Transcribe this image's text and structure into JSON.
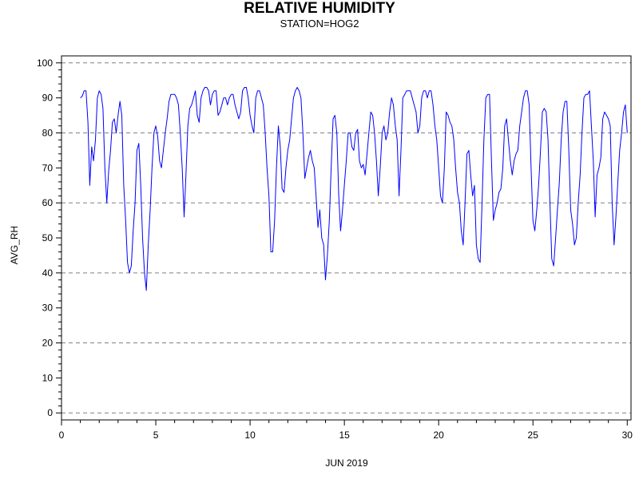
{
  "chart_data": {
    "type": "line",
    "title": "RELATIVE HUMIDITY",
    "subtitle": "STATION=HOG2",
    "xlabel": "JUN 2019",
    "ylabel": "AVG_RH",
    "xlim": [
      0,
      30.2
    ],
    "ylim": [
      -2,
      102
    ],
    "xticks": [
      0,
      5,
      10,
      15,
      20,
      25,
      30
    ],
    "yticks": [
      0,
      10,
      20,
      30,
      40,
      50,
      60,
      70,
      80,
      90,
      100
    ],
    "grid": {
      "horizontal_dashed_at": [
        0,
        20,
        40,
        60,
        80,
        100
      ]
    },
    "line_color": "#0000ff",
    "series": [
      {
        "x": [
          1.0,
          1.1,
          1.2,
          1.3,
          1.4,
          1.5,
          1.6,
          1.7,
          1.8,
          1.9,
          2.0,
          2.1,
          2.2,
          2.3,
          2.4,
          2.5,
          2.6,
          2.7,
          2.8,
          2.9,
          3.0,
          3.1,
          3.2,
          3.3,
          3.4,
          3.5,
          3.6,
          3.7,
          3.8,
          3.9,
          4.0,
          4.1,
          4.2,
          4.3,
          4.4,
          4.5,
          4.6,
          4.7,
          4.8,
          4.9,
          5.0,
          5.1,
          5.2,
          5.3,
          5.4,
          5.5,
          5.6,
          5.7,
          5.8,
          5.9,
          6.0,
          6.1,
          6.2,
          6.3,
          6.4,
          6.5,
          6.6,
          6.7,
          6.8,
          6.9,
          7.0,
          7.1,
          7.2,
          7.3,
          7.4,
          7.5,
          7.6,
          7.7,
          7.8,
          7.9,
          8.0,
          8.1,
          8.2,
          8.3,
          8.4,
          8.5,
          8.6,
          8.7,
          8.8,
          8.9,
          9.0,
          9.1,
          9.2,
          9.3,
          9.4,
          9.5,
          9.6,
          9.7,
          9.8,
          9.9,
          10.0,
          10.1,
          10.2,
          10.3,
          10.4,
          10.5,
          10.6,
          10.7,
          10.8,
          10.9,
          11.0,
          11.1,
          11.2,
          11.3,
          11.4,
          11.5,
          11.6,
          11.7,
          11.8,
          11.9,
          12.0,
          12.1,
          12.2,
          12.3,
          12.4,
          12.5,
          12.6,
          12.7,
          12.8,
          12.9,
          13.0,
          13.1,
          13.2,
          13.3,
          13.4,
          13.5,
          13.6,
          13.7,
          13.8,
          13.9,
          14.0,
          14.1,
          14.2,
          14.3,
          14.4,
          14.5,
          14.6,
          14.7,
          14.8,
          14.9,
          15.0,
          15.1,
          15.2,
          15.3,
          15.4,
          15.5,
          15.6,
          15.7,
          15.8,
          15.9,
          16.0,
          16.1,
          16.2,
          16.3,
          16.4,
          16.5,
          16.6,
          16.7,
          16.8,
          16.9,
          17.0,
          17.1,
          17.2,
          17.3,
          17.4,
          17.5,
          17.6,
          17.7,
          17.8,
          17.9,
          18.0,
          18.1,
          18.2,
          18.3,
          18.4,
          18.5,
          18.6,
          18.7,
          18.8,
          18.9,
          19.0,
          19.1,
          19.2,
          19.3,
          19.4,
          19.5,
          19.6,
          19.7,
          19.8,
          19.9,
          20.0,
          20.1,
          20.2,
          20.3,
          20.4,
          20.5,
          20.6,
          20.7,
          20.8,
          20.9,
          21.0,
          21.1,
          21.2,
          21.3,
          21.4,
          21.5,
          21.6,
          21.7,
          21.8,
          21.9,
          22.0,
          22.1,
          22.2,
          22.3,
          22.4,
          22.5,
          22.6,
          22.7,
          22.8,
          22.9,
          23.0,
          23.1,
          23.2,
          23.3,
          23.4,
          23.5,
          23.6,
          23.7,
          23.8,
          23.9,
          24.0,
          24.1,
          24.2,
          24.3,
          24.4,
          24.5,
          24.6,
          24.7,
          24.8,
          24.9,
          25.0,
          25.1,
          25.2,
          25.3,
          25.4,
          25.5,
          25.6,
          25.7,
          25.8,
          25.9,
          26.0,
          26.1,
          26.2,
          26.3,
          26.4,
          26.5,
          26.6,
          26.7,
          26.8,
          26.9,
          27.0,
          27.1,
          27.2,
          27.3,
          27.4,
          27.5,
          27.6,
          27.7,
          27.8,
          27.9,
          28.0,
          28.1,
          28.2,
          28.3,
          28.4,
          28.5,
          28.6,
          28.7,
          28.8,
          28.9,
          29.0,
          29.1,
          29.2,
          29.3,
          29.4,
          29.5,
          29.6,
          29.7,
          29.8,
          29.9,
          30.0
        ],
        "y": [
          90,
          90.5,
          92,
          92,
          83,
          65,
          76,
          72,
          78,
          90,
          92,
          91,
          87,
          70,
          60,
          69,
          75,
          83,
          84,
          80,
          85,
          89,
          85,
          65,
          55,
          43,
          40,
          42,
          52,
          60,
          75,
          77,
          65,
          50,
          40,
          35,
          48,
          58,
          70,
          80,
          82,
          79,
          72,
          70,
          75,
          80,
          84,
          89,
          91,
          91,
          91,
          90,
          88,
          80,
          70,
          56,
          68,
          82,
          87,
          88,
          90,
          92,
          85,
          83,
          90,
          92,
          93,
          93,
          92,
          88,
          91,
          92,
          92,
          85,
          86,
          88,
          90,
          90,
          88,
          90,
          91,
          91,
          88,
          86,
          84,
          86,
          92,
          93,
          93,
          90,
          85,
          82,
          80,
          90,
          92,
          92,
          90,
          88,
          80,
          70,
          62,
          46,
          46,
          55,
          70,
          82,
          76,
          64,
          63,
          70,
          75,
          78,
          84,
          90,
          92,
          93,
          92,
          90,
          80,
          67,
          70,
          73,
          75,
          72,
          70,
          62,
          53,
          58,
          50,
          48,
          38,
          45,
          55,
          70,
          84,
          85,
          80,
          62,
          52,
          58,
          65,
          72,
          80,
          80,
          76,
          75,
          80,
          81,
          72,
          70,
          71,
          68,
          74,
          80,
          86,
          85,
          80,
          72,
          62,
          70,
          80,
          82,
          78,
          80,
          86,
          90,
          88,
          82,
          78,
          62,
          75,
          90,
          91,
          92,
          92,
          92,
          90,
          88,
          86,
          80,
          82,
          90,
          92,
          92,
          90,
          92,
          92,
          88,
          82,
          78,
          70,
          62,
          60,
          70,
          86,
          85,
          83,
          82,
          78,
          70,
          63,
          60,
          52,
          48,
          60,
          74,
          75,
          68,
          62,
          65,
          48,
          44,
          43,
          60,
          78,
          90,
          91,
          91,
          72,
          55,
          58,
          60,
          63,
          64,
          70,
          82,
          84,
          78,
          72,
          68,
          72,
          74,
          75,
          82,
          86,
          90,
          92,
          92,
          88,
          70,
          55,
          52,
          58,
          65,
          75,
          86,
          87,
          86,
          78,
          60,
          44,
          42,
          50,
          58,
          66,
          78,
          86,
          89,
          89,
          75,
          58,
          54,
          48,
          50,
          60,
          68,
          80,
          90,
          91,
          91,
          92,
          82,
          72,
          56,
          68,
          70,
          73,
          84,
          86,
          85,
          84,
          82,
          60,
          48,
          56,
          66,
          75,
          80,
          86,
          88,
          80
        ]
      }
    ]
  }
}
